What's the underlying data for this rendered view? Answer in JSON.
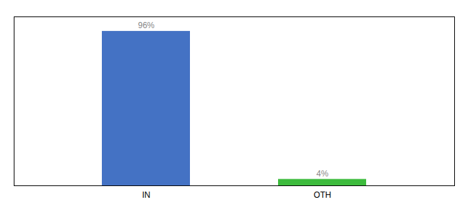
{
  "chart_data": {
    "type": "bar",
    "categories": [
      "IN",
      "OTH"
    ],
    "values": [
      96,
      4
    ],
    "value_labels": [
      "96%",
      "4%"
    ],
    "colors": [
      "#4472c4",
      "#3dbb3d"
    ],
    "ylim": [
      0,
      105
    ],
    "tick_labels": "x",
    "data_labels": true
  }
}
